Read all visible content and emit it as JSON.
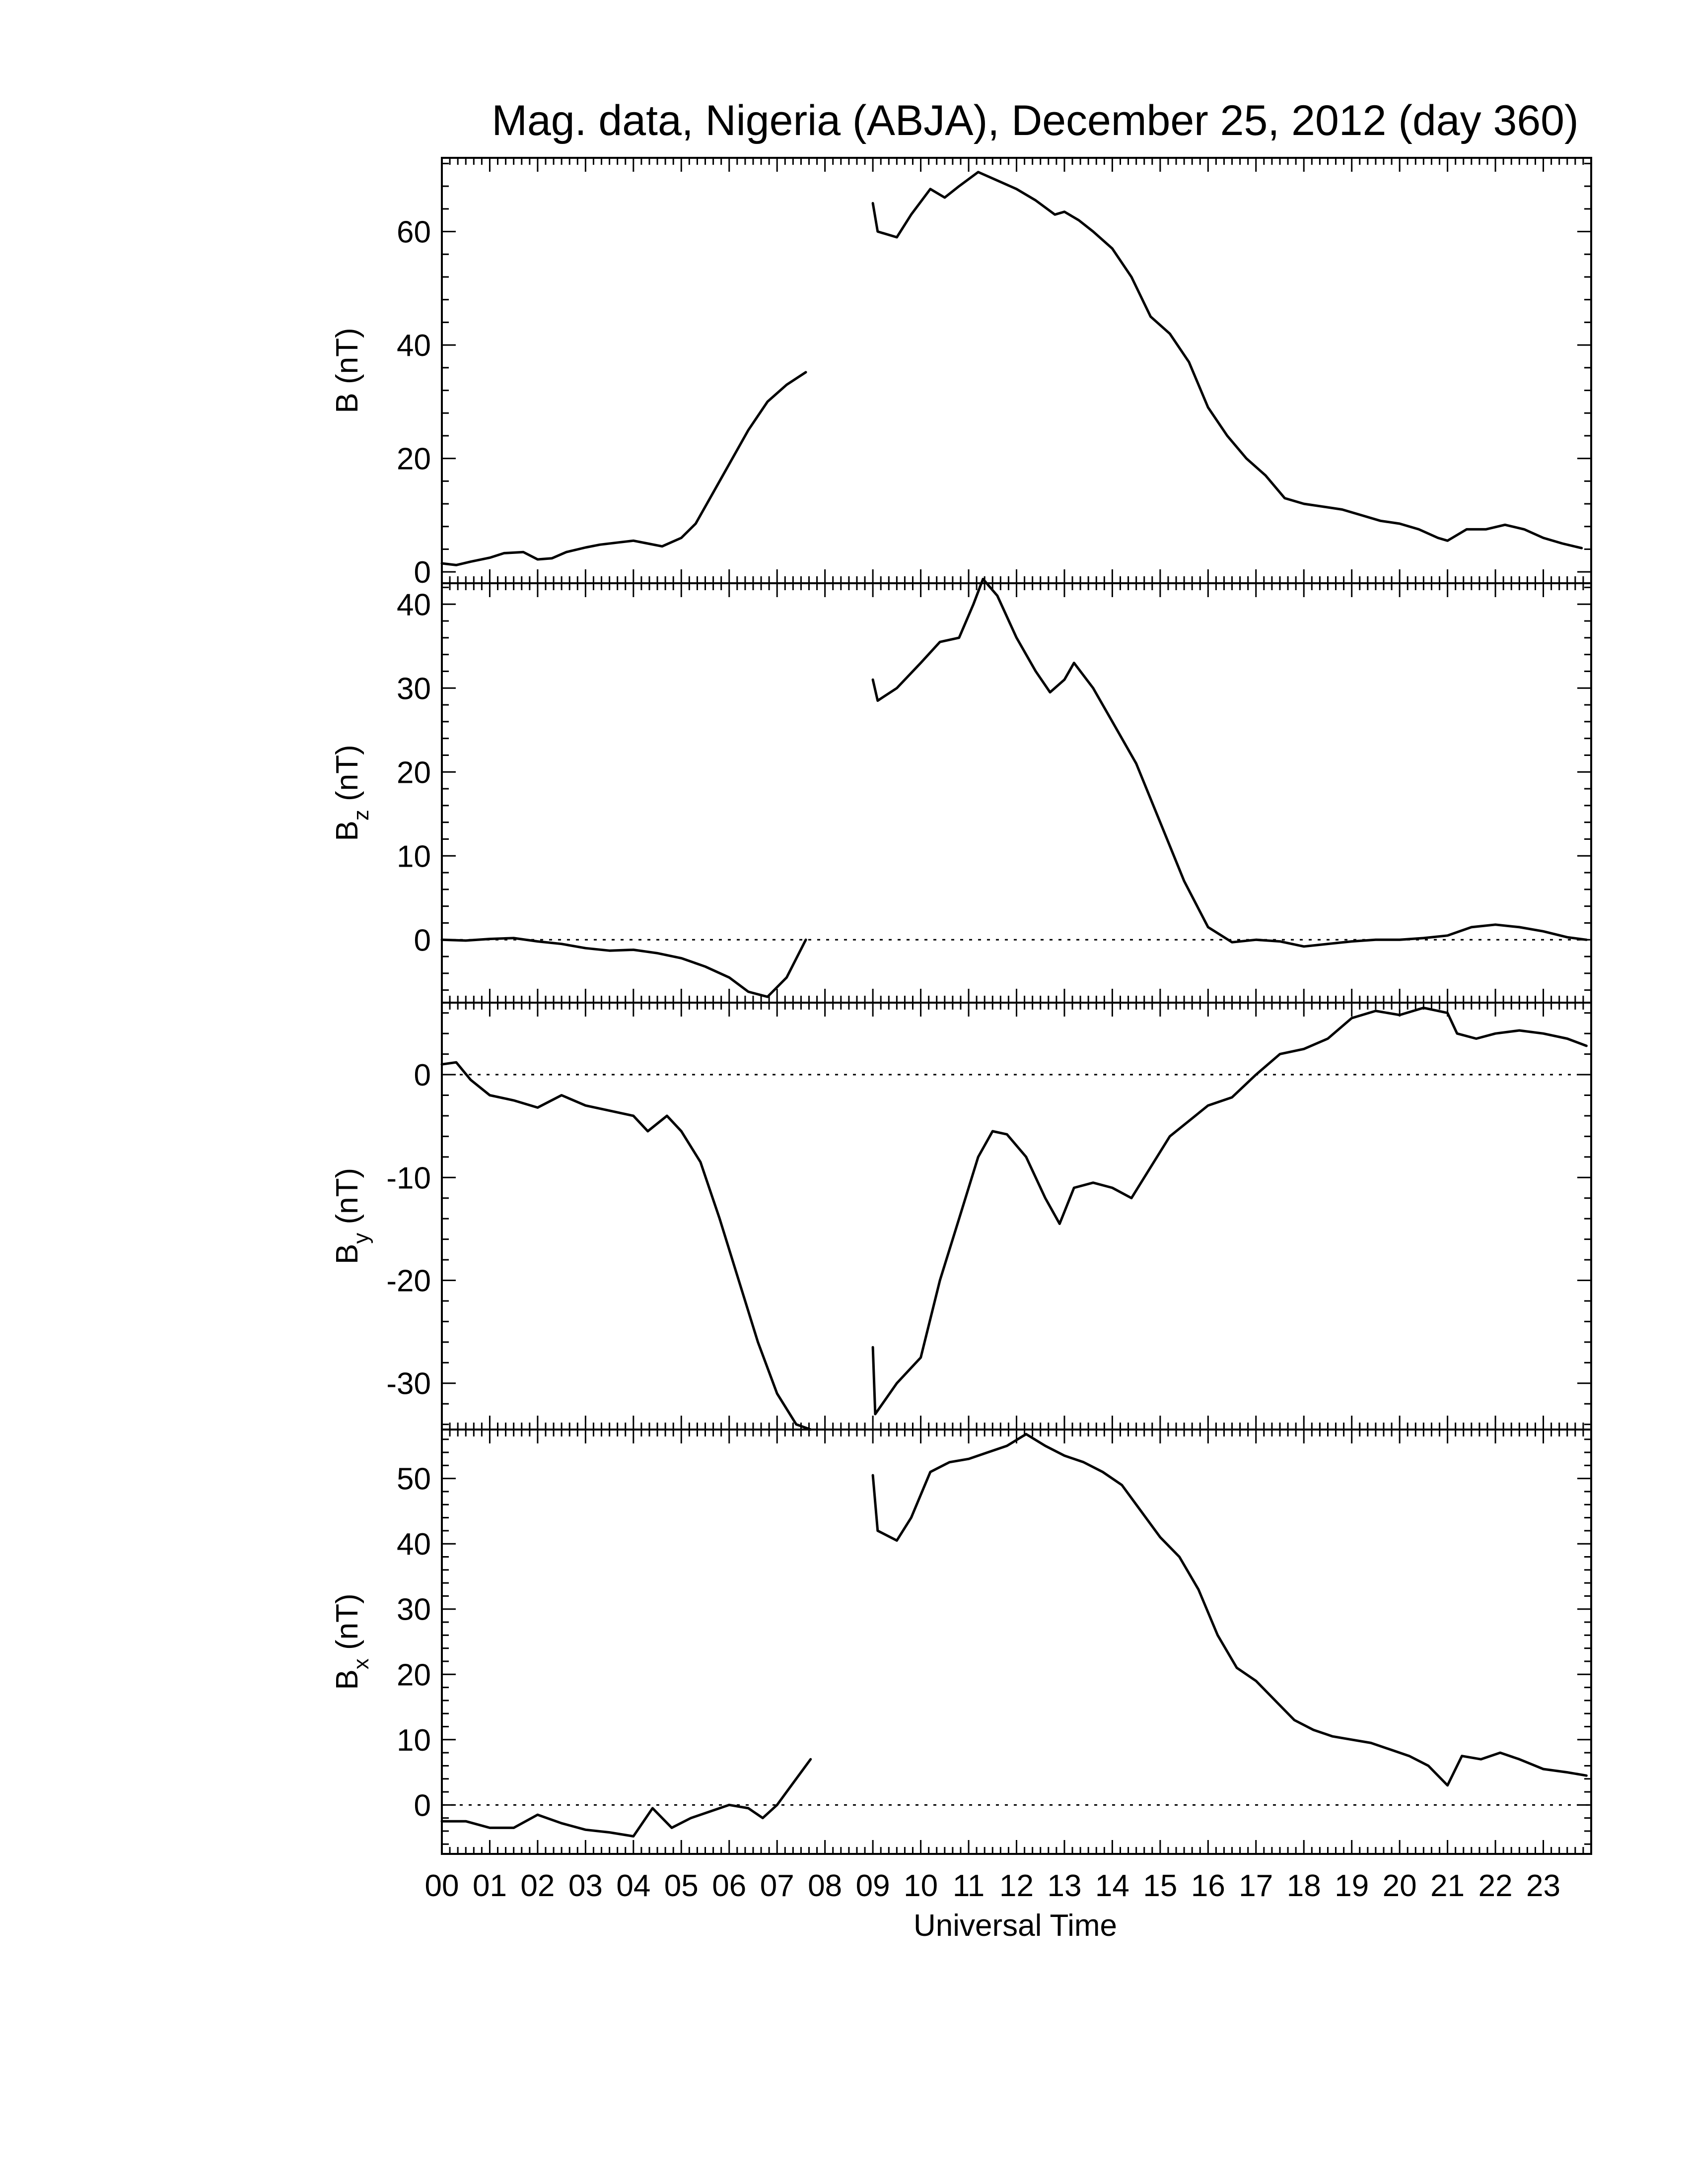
{
  "chart_data": {
    "type": "line",
    "title": "Mag. data, Nigeria (ABJA), December 25, 2012 (day 360)",
    "xlabel": "Universal Time",
    "x_tick_labels": [
      "00",
      "01",
      "02",
      "03",
      "04",
      "05",
      "06",
      "07",
      "08",
      "09",
      "10",
      "11",
      "12",
      "13",
      "14",
      "15",
      "16",
      "17",
      "18",
      "19",
      "20",
      "21",
      "22",
      "23"
    ],
    "xlim": [
      0,
      24
    ],
    "grid": false,
    "panels": [
      {
        "id": "B",
        "ylabel": "B (nT)",
        "ylabel_main": "B",
        "ylabel_sub": "",
        "ylabel_unit": " (nT)",
        "ylim": [
          -2,
          73
        ],
        "yticks": [
          0,
          20,
          40,
          60
        ],
        "zero_line": false,
        "segments": [
          [
            [
              0,
              1.5
            ],
            [
              0.3,
              1.2
            ],
            [
              0.6,
              1.8
            ],
            [
              1.0,
              2.5
            ],
            [
              1.3,
              3.3
            ],
            [
              1.7,
              3.5
            ],
            [
              2.0,
              2.2
            ],
            [
              2.3,
              2.4
            ],
            [
              2.6,
              3.5
            ],
            [
              3.0,
              4.3
            ],
            [
              3.3,
              4.8
            ],
            [
              3.7,
              5.2
            ],
            [
              4.0,
              5.5
            ],
            [
              4.3,
              5.0
            ],
            [
              4.6,
              4.5
            ],
            [
              5.0,
              6.0
            ],
            [
              5.3,
              8.5
            ],
            [
              5.6,
              13
            ],
            [
              6.0,
              19
            ],
            [
              6.4,
              25
            ],
            [
              6.8,
              30
            ],
            [
              7.2,
              33
            ],
            [
              7.6,
              35.2
            ]
          ],
          [
            [
              9.0,
              65
            ],
            [
              9.1,
              60
            ],
            [
              9.5,
              59
            ],
            [
              9.8,
              63
            ],
            [
              10.2,
              67.5
            ],
            [
              10.5,
              66
            ],
            [
              10.8,
              68
            ],
            [
              11.2,
              70.5
            ],
            [
              11.6,
              69
            ],
            [
              12.0,
              67.5
            ],
            [
              12.4,
              65.5
            ],
            [
              12.8,
              63
            ],
            [
              13.0,
              63.5
            ],
            [
              13.3,
              62
            ],
            [
              13.6,
              60
            ],
            [
              14.0,
              57
            ],
            [
              14.4,
              52
            ],
            [
              14.8,
              45
            ],
            [
              15.2,
              42
            ],
            [
              15.6,
              37
            ],
            [
              16.0,
              29
            ],
            [
              16.4,
              24
            ],
            [
              16.8,
              20
            ],
            [
              17.2,
              17
            ],
            [
              17.6,
              13
            ],
            [
              18.0,
              12
            ],
            [
              18.4,
              11.5
            ],
            [
              18.8,
              11
            ],
            [
              19.2,
              10
            ],
            [
              19.6,
              9
            ],
            [
              20.0,
              8.5
            ],
            [
              20.4,
              7.5
            ],
            [
              20.8,
              6
            ],
            [
              21.0,
              5.5
            ],
            [
              21.4,
              7.5
            ],
            [
              21.8,
              7.5
            ],
            [
              22.2,
              8.3
            ],
            [
              22.6,
              7.5
            ],
            [
              23.0,
              6
            ],
            [
              23.4,
              5
            ],
            [
              23.8,
              4.2
            ]
          ]
        ]
      },
      {
        "id": "Bz",
        "ylabel": "Bz (nT)",
        "ylabel_main": "B",
        "ylabel_sub": "z",
        "ylabel_unit": " (nT)",
        "ylim": [
          -7.5,
          42.5
        ],
        "yticks": [
          0,
          10,
          20,
          30,
          40
        ],
        "zero_line": true,
        "segments": [
          [
            [
              0,
              0
            ],
            [
              0.5,
              -0.1
            ],
            [
              1.0,
              0.1
            ],
            [
              1.5,
              0.2
            ],
            [
              2.0,
              -0.2
            ],
            [
              2.5,
              -0.5
            ],
            [
              3.0,
              -1.0
            ],
            [
              3.5,
              -1.3
            ],
            [
              4.0,
              -1.2
            ],
            [
              4.5,
              -1.6
            ],
            [
              5.0,
              -2.2
            ],
            [
              5.5,
              -3.2
            ],
            [
              6.0,
              -4.5
            ],
            [
              6.4,
              -6.2
            ],
            [
              6.8,
              -6.8
            ],
            [
              7.2,
              -4.5
            ],
            [
              7.6,
              0
            ]
          ],
          [
            [
              9.0,
              31
            ],
            [
              9.1,
              28.5
            ],
            [
              9.5,
              30
            ],
            [
              10.0,
              33
            ],
            [
              10.4,
              35.5
            ],
            [
              10.8,
              36
            ],
            [
              11.1,
              40
            ],
            [
              11.3,
              43
            ],
            [
              11.6,
              41
            ],
            [
              12.0,
              36
            ],
            [
              12.4,
              32
            ],
            [
              12.7,
              29.5
            ],
            [
              13.0,
              31
            ],
            [
              13.2,
              33
            ],
            [
              13.6,
              30
            ],
            [
              14.0,
              26
            ],
            [
              14.5,
              21
            ],
            [
              15.0,
              14
            ],
            [
              15.5,
              7
            ],
            [
              16.0,
              1.5
            ],
            [
              16.5,
              -0.3
            ],
            [
              17.0,
              0
            ],
            [
              17.5,
              -0.2
            ],
            [
              18.0,
              -0.8
            ],
            [
              18.5,
              -0.5
            ],
            [
              19.0,
              -0.2
            ],
            [
              19.5,
              0
            ],
            [
              20.0,
              0
            ],
            [
              20.5,
              0.2
            ],
            [
              21.0,
              0.5
            ],
            [
              21.5,
              1.5
            ],
            [
              22.0,
              1.8
            ],
            [
              22.5,
              1.5
            ],
            [
              23.0,
              1.0
            ],
            [
              23.5,
              0.3
            ],
            [
              23.9,
              0
            ]
          ]
        ]
      },
      {
        "id": "By",
        "ylabel": "By (nT)",
        "ylabel_main": "B",
        "ylabel_sub": "y",
        "ylabel_unit": " (nT)",
        "ylim": [
          -34.5,
          7
        ],
        "yticks": [
          0,
          -10,
          -20,
          -30
        ],
        "zero_line": true,
        "segments": [
          [
            [
              0,
              1.0
            ],
            [
              0.3,
              1.2
            ],
            [
              0.6,
              -0.5
            ],
            [
              1.0,
              -2.0
            ],
            [
              1.5,
              -2.5
            ],
            [
              2.0,
              -3.2
            ],
            [
              2.5,
              -2.0
            ],
            [
              3.0,
              -3.0
            ],
            [
              3.5,
              -3.5
            ],
            [
              4.0,
              -4.0
            ],
            [
              4.3,
              -5.5
            ],
            [
              4.7,
              -4.0
            ],
            [
              5.0,
              -5.5
            ],
            [
              5.4,
              -8.5
            ],
            [
              5.8,
              -14
            ],
            [
              6.2,
              -20
            ],
            [
              6.6,
              -26
            ],
            [
              7.0,
              -31
            ],
            [
              7.4,
              -34
            ],
            [
              7.7,
              -34.5
            ]
          ],
          [
            [
              9.0,
              -26.5
            ],
            [
              9.05,
              -33
            ],
            [
              9.2,
              -32
            ],
            [
              9.5,
              -30
            ],
            [
              10.0,
              -27.5
            ],
            [
              10.4,
              -20
            ],
            [
              10.8,
              -14
            ],
            [
              11.2,
              -8
            ],
            [
              11.5,
              -5.5
            ],
            [
              11.8,
              -5.8
            ],
            [
              12.2,
              -8
            ],
            [
              12.6,
              -12
            ],
            [
              12.9,
              -14.5
            ],
            [
              13.2,
              -11
            ],
            [
              13.6,
              -10.5
            ],
            [
              14.0,
              -11
            ],
            [
              14.4,
              -12
            ],
            [
              14.8,
              -9
            ],
            [
              15.2,
              -6
            ],
            [
              15.6,
              -4.5
            ],
            [
              16.0,
              -3
            ],
            [
              16.5,
              -2.2
            ],
            [
              17.0,
              0
            ],
            [
              17.5,
              2.0
            ],
            [
              18.0,
              2.5
            ],
            [
              18.5,
              3.5
            ],
            [
              19.0,
              5.5
            ],
            [
              19.5,
              6.2
            ],
            [
              20.0,
              5.8
            ],
            [
              20.5,
              6.5
            ],
            [
              21.0,
              6.0
            ],
            [
              21.2,
              4.0
            ],
            [
              21.6,
              3.5
            ],
            [
              22.0,
              4.0
            ],
            [
              22.5,
              4.3
            ],
            [
              23.0,
              4.0
            ],
            [
              23.5,
              3.5
            ],
            [
              23.9,
              2.8
            ]
          ]
        ]
      },
      {
        "id": "Bx",
        "ylabel": "Bx (nT)",
        "ylabel_main": "B",
        "ylabel_sub": "x",
        "ylabel_unit": " (nT)",
        "ylim": [
          -7.5,
          57.5
        ],
        "yticks": [
          0,
          10,
          20,
          30,
          40,
          50
        ],
        "zero_line": true,
        "segments": [
          [
            [
              0,
              -2.5
            ],
            [
              0.5,
              -2.5
            ],
            [
              1.0,
              -3.5
            ],
            [
              1.5,
              -3.5
            ],
            [
              2.0,
              -1.5
            ],
            [
              2.5,
              -2.8
            ],
            [
              3.0,
              -3.8
            ],
            [
              3.5,
              -4.2
            ],
            [
              4.0,
              -4.8
            ],
            [
              4.4,
              -0.5
            ],
            [
              4.8,
              -3.5
            ],
            [
              5.2,
              -2.0
            ],
            [
              5.6,
              -1.0
            ],
            [
              6.0,
              0
            ],
            [
              6.4,
              -0.5
            ],
            [
              6.7,
              -2.0
            ],
            [
              7.0,
              0
            ],
            [
              7.3,
              3
            ],
            [
              7.7,
              7
            ]
          ],
          [
            [
              9.0,
              50.5
            ],
            [
              9.1,
              42
            ],
            [
              9.5,
              40.5
            ],
            [
              9.8,
              44
            ],
            [
              10.2,
              51
            ],
            [
              10.6,
              52.5
            ],
            [
              11.0,
              53
            ],
            [
              11.4,
              54
            ],
            [
              11.8,
              55
            ],
            [
              12.2,
              56.8
            ],
            [
              12.6,
              55
            ],
            [
              13.0,
              53.5
            ],
            [
              13.4,
              52.5
            ],
            [
              13.8,
              51
            ],
            [
              14.2,
              49
            ],
            [
              14.6,
              45
            ],
            [
              15.0,
              41
            ],
            [
              15.4,
              38
            ],
            [
              15.8,
              33
            ],
            [
              16.2,
              26
            ],
            [
              16.6,
              21
            ],
            [
              17.0,
              19
            ],
            [
              17.4,
              16
            ],
            [
              17.8,
              13
            ],
            [
              18.2,
              11.5
            ],
            [
              18.6,
              10.5
            ],
            [
              19.0,
              10
            ],
            [
              19.4,
              9.5
            ],
            [
              19.8,
              8.5
            ],
            [
              20.2,
              7.5
            ],
            [
              20.6,
              6
            ],
            [
              21.0,
              3
            ],
            [
              21.3,
              7.5
            ],
            [
              21.7,
              7
            ],
            [
              22.1,
              8
            ],
            [
              22.5,
              7
            ],
            [
              23.0,
              5.5
            ],
            [
              23.5,
              5
            ],
            [
              23.9,
              4.5
            ]
          ]
        ]
      }
    ]
  }
}
